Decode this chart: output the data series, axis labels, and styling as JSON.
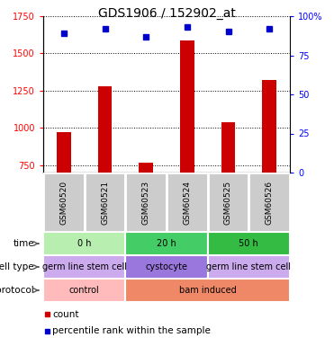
{
  "title": "GDS1906 / 152902_at",
  "samples": [
    "GSM60520",
    "GSM60521",
    "GSM60523",
    "GSM60524",
    "GSM60525",
    "GSM60526"
  ],
  "counts": [
    970,
    1280,
    765,
    1590,
    1040,
    1320
  ],
  "percentile_ranks": [
    89,
    92,
    87,
    93,
    90,
    92
  ],
  "ylim_left": [
    700,
    1750
  ],
  "ylim_right": [
    0,
    100
  ],
  "yticks_left": [
    750,
    1000,
    1250,
    1500,
    1750
  ],
  "yticks_right": [
    0,
    25,
    50,
    75,
    100
  ],
  "bar_color": "#cc0000",
  "dot_color": "#0000cc",
  "bar_width": 0.35,
  "sample_bg_color": "#cccccc",
  "time_segs": [
    [
      "0 h",
      0,
      2,
      "#b8eeb0"
    ],
    [
      "20 h",
      2,
      4,
      "#44cc66"
    ],
    [
      "50 h",
      4,
      6,
      "#33bb44"
    ]
  ],
  "cell_segs": [
    [
      "germ line stem cell",
      0,
      2,
      "#ccaaee"
    ],
    [
      "cystocyte",
      2,
      4,
      "#9977dd"
    ],
    [
      "germ line stem cell",
      4,
      6,
      "#ccaaee"
    ]
  ],
  "proto_segs": [
    [
      "control",
      0,
      2,
      "#ffbbbb"
    ],
    [
      "bam induced",
      2,
      6,
      "#ee8866"
    ]
  ],
  "legend_items": [
    [
      "count",
      "#cc0000"
    ],
    [
      "percentile rank within the sample",
      "#0000cc"
    ]
  ]
}
